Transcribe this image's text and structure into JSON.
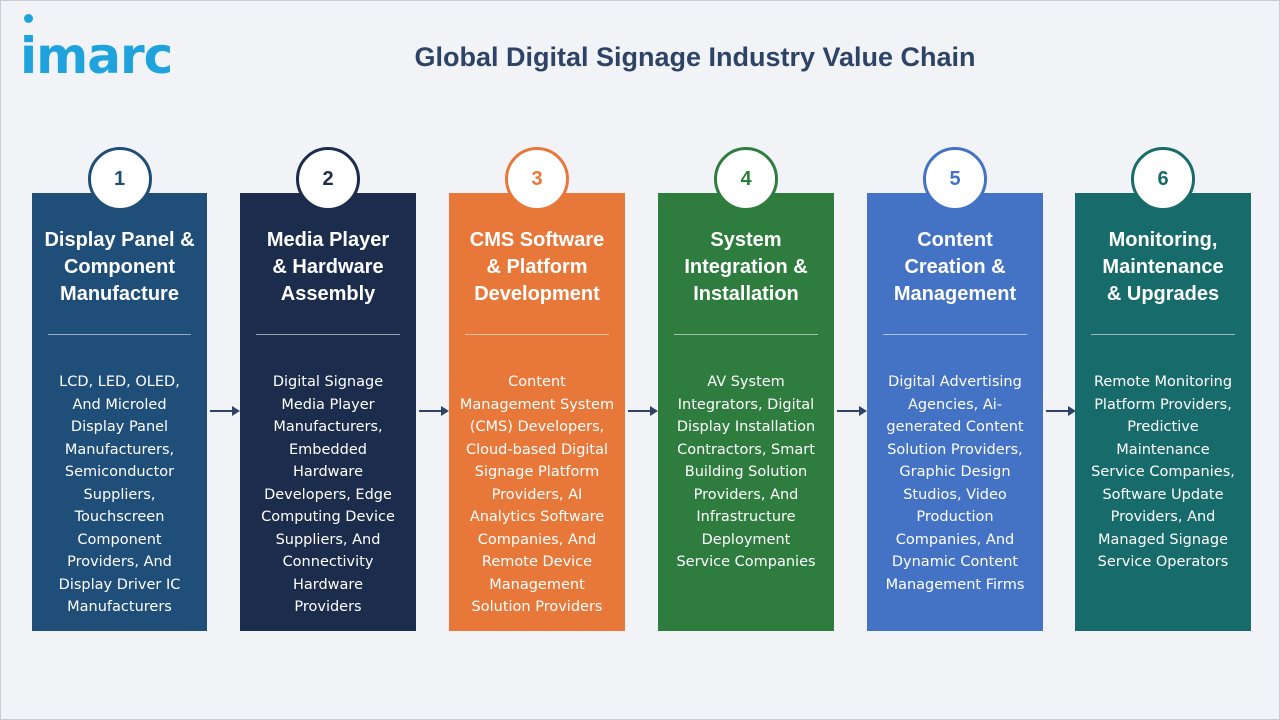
{
  "logo": {
    "text": "imarc"
  },
  "title": "Global Digital Signage Industry Value Chain",
  "colors": {
    "logo": "#1ea3dc",
    "title": "#2d4466",
    "arrow": "#2d4466"
  },
  "stages": [
    {
      "number": "1",
      "title_lines": [
        "Display Panel &",
        "Component",
        "Manufacture"
      ],
      "desc_lines": [
        "LCD, LED, OLED,",
        "And Microled",
        "Display Panel",
        "Manufacturers,",
        "Semiconductor",
        "Suppliers,",
        "Touchscreen",
        "Component",
        "Providers, And",
        "Display Driver IC",
        "Manufacturers"
      ],
      "color": "#1f4e79",
      "number_color": "#1f4e79",
      "ring_color": "#1f4e79"
    },
    {
      "number": "2",
      "title_lines": [
        "Media Player",
        "& Hardware",
        "Assembly"
      ],
      "desc_lines": [
        "Digital Signage",
        "Media Player",
        "Manufacturers,",
        "Embedded",
        "Hardware",
        "Developers, Edge",
        "Computing Device",
        "Suppliers, And",
        "Connectivity",
        "Hardware",
        "Providers"
      ],
      "color": "#1c2c4c",
      "number_color": "#1c2c4c",
      "ring_color": "#1c2c4c"
    },
    {
      "number": "3",
      "title_lines": [
        "CMS Software",
        "& Platform",
        "Development"
      ],
      "desc_lines": [
        "Content",
        "Management System",
        "(CMS) Developers,",
        "Cloud-based Digital",
        "Signage Platform",
        "Providers, AI",
        "Analytics Software",
        "Companies, And",
        "Remote Device",
        "Management",
        "Solution Providers"
      ],
      "color": "#e8783a",
      "number_color": "#e8783a",
      "ring_color": "#e8783a"
    },
    {
      "number": "4",
      "title_lines": [
        "System",
        "Integration &",
        "Installation"
      ],
      "desc_lines": [
        "AV System",
        "Integrators, Digital",
        "Display Installation",
        "Contractors, Smart",
        "Building Solution",
        "Providers, And",
        "Infrastructure",
        "Deployment",
        "Service Companies"
      ],
      "color": "#2e7d3e",
      "number_color": "#2e7d3e",
      "ring_color": "#2e7d3e"
    },
    {
      "number": "5",
      "title_lines": [
        "Content",
        "Creation &",
        "Management"
      ],
      "desc_lines": [
        "Digital Advertising",
        "Agencies, Ai-",
        "generated Content",
        "Solution Providers,",
        "Graphic Design",
        "Studios, Video",
        "Production",
        "Companies, And",
        "Dynamic Content",
        "Management Firms"
      ],
      "color": "#4472c4",
      "number_color": "#4472c4",
      "ring_color": "#4472c4"
    },
    {
      "number": "6",
      "title_lines": [
        "Monitoring,",
        "Maintenance",
        "& Upgrades"
      ],
      "desc_lines": [
        "Remote Monitoring",
        "Platform Providers,",
        "Predictive",
        "Maintenance",
        "Service Companies,",
        "Software Update",
        "Providers, And",
        "Managed Signage",
        "Service Operators"
      ],
      "color": "#186b6b",
      "number_color": "#186b6b",
      "ring_color": "#186b6b"
    }
  ]
}
